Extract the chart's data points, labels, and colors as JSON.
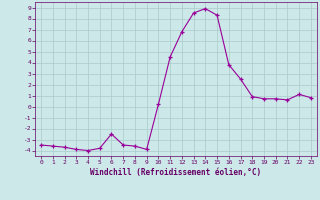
{
  "x": [
    0,
    1,
    2,
    3,
    4,
    5,
    6,
    7,
    8,
    9,
    10,
    11,
    12,
    13,
    14,
    15,
    16,
    17,
    18,
    19,
    20,
    21,
    22,
    23
  ],
  "y": [
    -3.5,
    -3.6,
    -3.7,
    -3.9,
    -4.0,
    -3.8,
    -2.5,
    -3.5,
    -3.6,
    -3.9,
    0.2,
    4.5,
    6.8,
    8.5,
    8.9,
    8.3,
    3.8,
    2.5,
    0.9,
    0.7,
    0.7,
    0.6,
    1.1,
    0.8
  ],
  "line_color": "#990099",
  "marker": "+",
  "bg_color": "#cce8e8",
  "grid_color": "#aacccc",
  "xlabel": "Windchill (Refroidissement éolien,°C)",
  "xlabel_color": "#660066",
  "tick_color": "#660066",
  "ylim": [
    -4.5,
    9.5
  ],
  "xlim": [
    -0.5,
    23.5
  ],
  "yticks": [
    -4,
    -3,
    -2,
    -1,
    0,
    1,
    2,
    3,
    4,
    5,
    6,
    7,
    8,
    9
  ],
  "xticks": [
    0,
    1,
    2,
    3,
    4,
    5,
    6,
    7,
    8,
    9,
    10,
    11,
    12,
    13,
    14,
    15,
    16,
    17,
    18,
    19,
    20,
    21,
    22,
    23
  ]
}
